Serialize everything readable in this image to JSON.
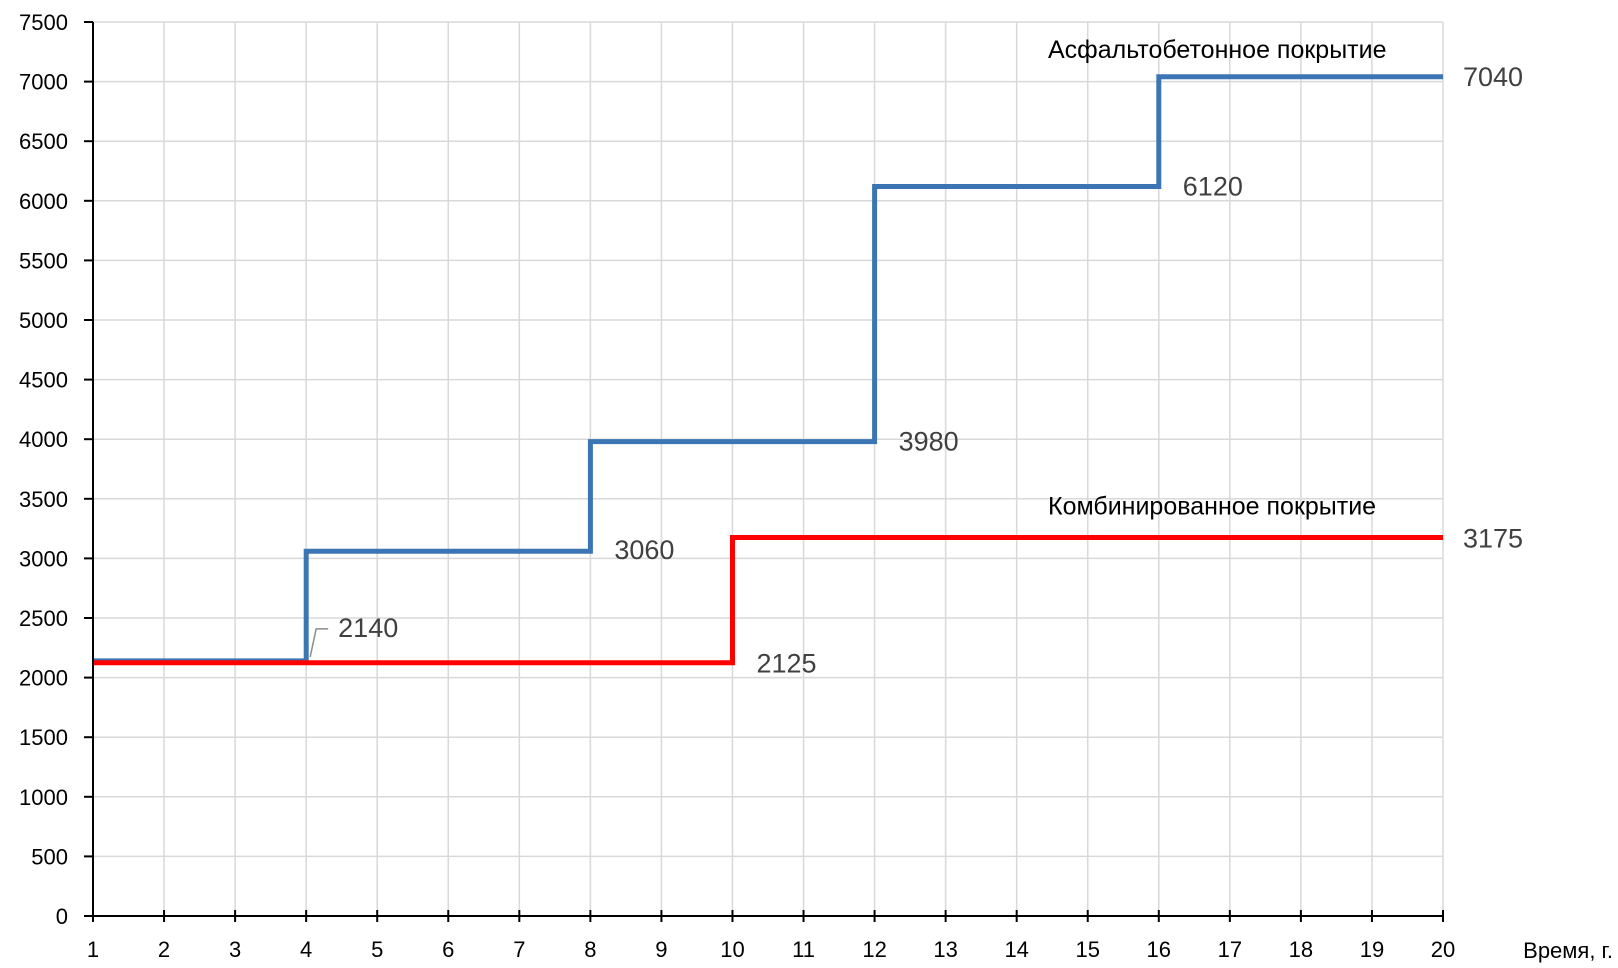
{
  "chart_data": {
    "type": "line",
    "step": true,
    "xlabel": "Время, г.",
    "ylabel": "",
    "xlim": [
      1,
      20
    ],
    "ylim": [
      0,
      7500
    ],
    "x_ticks": [
      1,
      2,
      3,
      4,
      5,
      6,
      7,
      8,
      9,
      10,
      11,
      12,
      13,
      14,
      15,
      16,
      17,
      18,
      19,
      20
    ],
    "y_ticks": [
      0,
      500,
      1000,
      1500,
      2000,
      2500,
      3000,
      3500,
      4000,
      4500,
      5000,
      5500,
      6000,
      6500,
      7000,
      7500
    ],
    "grid": true,
    "legend": "none",
    "series": [
      {
        "name": "Асфальтобетонное покрытие",
        "color": "#3b75b4",
        "x": [
          1,
          4,
          4,
          8,
          8,
          12,
          12,
          16,
          16,
          20
        ],
        "y": [
          2140,
          2140,
          3060,
          3060,
          3980,
          3980,
          6120,
          6120,
          7040,
          7040
        ],
        "data_labels": [
          {
            "x": 4,
            "y": 2140,
            "text": "2140"
          },
          {
            "x": 8,
            "y": 3060,
            "text": "3060"
          },
          {
            "x": 12,
            "y": 3980,
            "text": "3980"
          },
          {
            "x": 16,
            "y": 6120,
            "text": "6120"
          },
          {
            "x": 20,
            "y": 7040,
            "text": "7040"
          }
        ]
      },
      {
        "name": "Комбинированное покрытие",
        "color": "#ff0000",
        "x": [
          1,
          10,
          10,
          20
        ],
        "y": [
          2125,
          2125,
          3175,
          3175
        ],
        "data_labels": [
          {
            "x": 10,
            "y": 2125,
            "text": "2125"
          },
          {
            "x": 20,
            "y": 3175,
            "text": "3175"
          }
        ]
      }
    ]
  }
}
